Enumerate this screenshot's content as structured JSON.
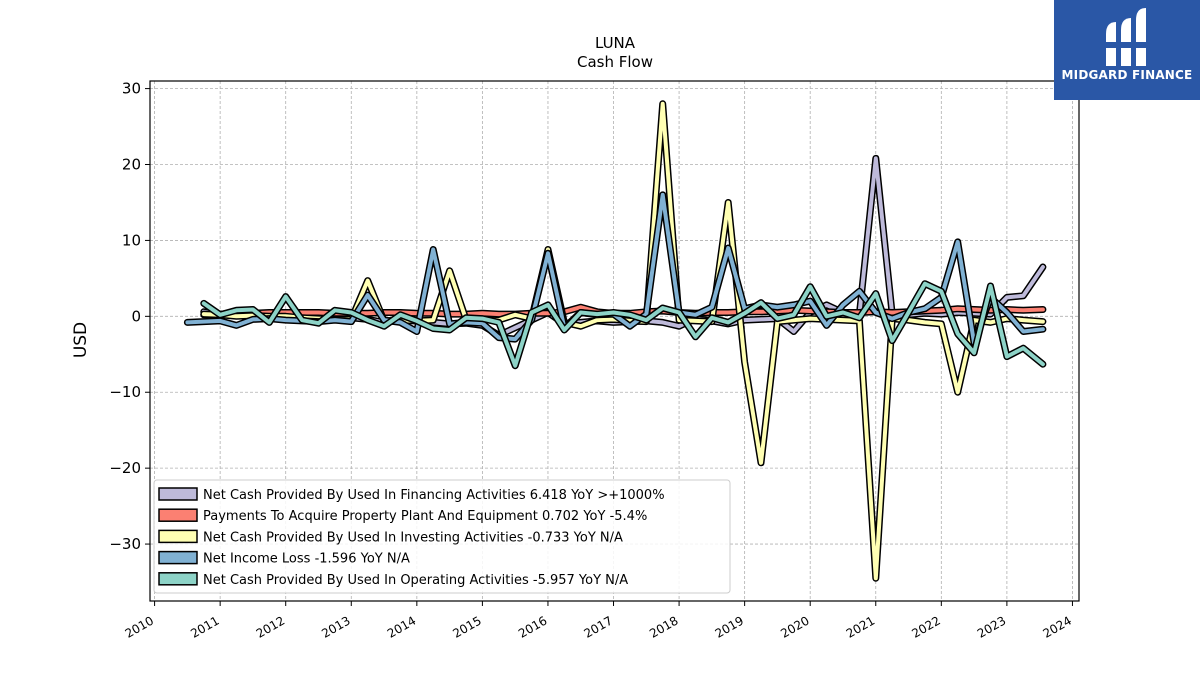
{
  "brand": {
    "name": "MIDGARD FINANCE",
    "color": "#2a57a6",
    "icon": "midgard-logo-icon"
  },
  "chart_data": {
    "type": "line",
    "title": "LUNA",
    "subtitle": "Cash Flow",
    "ylabel": "USD",
    "xlabel": "",
    "ylim": [
      -37.5,
      31
    ],
    "xlim": [
      2009.93,
      2024.1
    ],
    "yticks": [
      30,
      20,
      10,
      0,
      -10,
      -20,
      -30
    ],
    "ytick_labels": [
      "30",
      "20",
      "10",
      "0",
      "−10",
      "−20",
      "−30"
    ],
    "xticks": [
      2010,
      2011,
      2012,
      2013,
      2014,
      2015,
      2016,
      2017,
      2018,
      2019,
      2020,
      2021,
      2022,
      2023,
      2024
    ],
    "xtick_labels": [
      "2010",
      "2011",
      "2012",
      "2013",
      "2014",
      "2015",
      "2016",
      "2017",
      "2018",
      "2019",
      "2020",
      "2021",
      "2022",
      "2023",
      "2024"
    ],
    "grid": true,
    "legend_position": "lower-left",
    "series": [
      {
        "name": "Net Cash Provided By Used In Financing Activities",
        "legend_label": "Net Cash Provided By Used In Financing Activities  6.418 YoY >+1000%",
        "color": "#bebada",
        "points": [
          [
            2010.75,
            0.6
          ],
          [
            2011,
            0.3
          ],
          [
            2011.25,
            0.4
          ],
          [
            2011.5,
            0.2
          ],
          [
            2011.75,
            -0.2
          ],
          [
            2012,
            0.3
          ],
          [
            2012.25,
            0.1
          ],
          [
            2012.5,
            0
          ],
          [
            2012.75,
            -0.3
          ],
          [
            2013,
            -0.2
          ],
          [
            2013.25,
            -0.4
          ],
          [
            2013.5,
            -0.8
          ],
          [
            2013.75,
            -0.5
          ],
          [
            2014,
            -0.6
          ],
          [
            2014.25,
            -0.8
          ],
          [
            2014.5,
            -1.0
          ],
          [
            2014.75,
            -0.9
          ],
          [
            2015,
            -1.2
          ],
          [
            2015.25,
            -2.5
          ],
          [
            2015.5,
            -1.5
          ],
          [
            2015.75,
            -0.5
          ],
          [
            2016,
            0.5
          ],
          [
            2016.25,
            -1.0
          ],
          [
            2016.5,
            -0.8
          ],
          [
            2016.75,
            -0.6
          ],
          [
            2017,
            -0.8
          ],
          [
            2017.25,
            -0.7
          ],
          [
            2017.5,
            -0.6
          ],
          [
            2017.75,
            -0.8
          ],
          [
            2018,
            -1.3
          ],
          [
            2018.25,
            -0.3
          ],
          [
            2018.5,
            -0.6
          ],
          [
            2018.75,
            -1.0
          ],
          [
            2019,
            -0.5
          ],
          [
            2019.25,
            -0.4
          ],
          [
            2019.5,
            -0.3
          ],
          [
            2019.75,
            -2.0
          ],
          [
            2020,
            0.5
          ],
          [
            2020.25,
            1.5
          ],
          [
            2020.5,
            0.5
          ],
          [
            2020.75,
            0.3
          ],
          [
            2021,
            20.8
          ],
          [
            2021.25,
            0.3
          ],
          [
            2021.5,
            0.2
          ],
          [
            2021.75,
            0.4
          ],
          [
            2022,
            0.3
          ],
          [
            2022.25,
            0.5
          ],
          [
            2022.5,
            0.4
          ],
          [
            2022.75,
            0.3
          ],
          [
            2023,
            2.5
          ],
          [
            2023.25,
            2.7
          ],
          [
            2023.55,
            6.5
          ]
        ]
      },
      {
        "name": "Payments To Acquire Property Plant And Equipment",
        "legend_label": "Payments To Acquire Property Plant And Equipment  0.702 YoY -5.4%",
        "color": "#fb8072",
        "points": [
          [
            2010.75,
            0.2
          ],
          [
            2011,
            0.3
          ],
          [
            2011.25,
            0.4
          ],
          [
            2011.5,
            0.4
          ],
          [
            2011.75,
            0.5
          ],
          [
            2012,
            0.5
          ],
          [
            2012.25,
            0.5
          ],
          [
            2012.5,
            0.5
          ],
          [
            2012.75,
            0.4
          ],
          [
            2013,
            0.4
          ],
          [
            2013.25,
            0.4
          ],
          [
            2013.5,
            0.5
          ],
          [
            2013.75,
            0.5
          ],
          [
            2014,
            0.4
          ],
          [
            2014.25,
            0.4
          ],
          [
            2014.5,
            0.3
          ],
          [
            2014.75,
            0.3
          ],
          [
            2015,
            0.4
          ],
          [
            2015.25,
            0.3
          ],
          [
            2015.5,
            0.3
          ],
          [
            2015.75,
            0.4
          ],
          [
            2016,
            0.4
          ],
          [
            2016.25,
            0.6
          ],
          [
            2016.5,
            1.2
          ],
          [
            2016.75,
            0.6
          ],
          [
            2017,
            0.4
          ],
          [
            2017.25,
            0.4
          ],
          [
            2017.5,
            0.6
          ],
          [
            2017.75,
            0.7
          ],
          [
            2018,
            0.5
          ],
          [
            2018.25,
            0.4
          ],
          [
            2018.5,
            0.5
          ],
          [
            2018.75,
            0.5
          ],
          [
            2019,
            0.6
          ],
          [
            2019.25,
            0.6
          ],
          [
            2019.5,
            0.7
          ],
          [
            2019.75,
            0.8
          ],
          [
            2020,
            0.7
          ],
          [
            2020.25,
            0.6
          ],
          [
            2020.5,
            0.5
          ],
          [
            2020.75,
            0.5
          ],
          [
            2021,
            0.6
          ],
          [
            2021.25,
            0.5
          ],
          [
            2021.5,
            0.6
          ],
          [
            2021.75,
            0.7
          ],
          [
            2022,
            0.8
          ],
          [
            2022.25,
            1.0
          ],
          [
            2022.5,
            0.9
          ],
          [
            2022.75,
            0.8
          ],
          [
            2023,
            0.9
          ],
          [
            2023.25,
            0.8
          ],
          [
            2023.55,
            0.9
          ]
        ]
      },
      {
        "name": "Net Cash Provided By Used In Investing Activities",
        "legend_label": "Net Cash Provided By Used In Investing Activities  -0.733 YoY N/A",
        "color": "#ffffb3",
        "points": [
          [
            2010.75,
            0.3
          ],
          [
            2011,
            0.2
          ],
          [
            2011.25,
            0
          ],
          [
            2011.5,
            0.1
          ],
          [
            2011.75,
            0
          ],
          [
            2012,
            0
          ],
          [
            2012.25,
            -0.2
          ],
          [
            2012.5,
            -0.3
          ],
          [
            2012.75,
            -0.4
          ],
          [
            2013,
            -0.4
          ],
          [
            2013.25,
            4.7
          ],
          [
            2013.5,
            -0.6
          ],
          [
            2013.75,
            -0.5
          ],
          [
            2014,
            -0.6
          ],
          [
            2014.25,
            -0.5
          ],
          [
            2014.5,
            6.0
          ],
          [
            2014.75,
            -0.4
          ],
          [
            2015,
            -0.4
          ],
          [
            2015.25,
            -0.5
          ],
          [
            2015.5,
            0.2
          ],
          [
            2015.75,
            -0.3
          ],
          [
            2016,
            8.8
          ],
          [
            2016.25,
            -0.8
          ],
          [
            2016.5,
            -1.3
          ],
          [
            2016.75,
            -0.5
          ],
          [
            2017,
            -0.4
          ],
          [
            2017.25,
            -0.6
          ],
          [
            2017.5,
            -0.7
          ],
          [
            2017.75,
            28
          ],
          [
            2018,
            -0.5
          ],
          [
            2018.25,
            -0.6
          ],
          [
            2018.5,
            -0.7
          ],
          [
            2018.75,
            15
          ],
          [
            2019,
            -6
          ],
          [
            2019.25,
            -19.3
          ],
          [
            2019.5,
            -0.7
          ],
          [
            2019.75,
            -0.5
          ],
          [
            2020,
            -0.3
          ],
          [
            2020.25,
            -0.4
          ],
          [
            2020.5,
            -0.5
          ],
          [
            2020.75,
            -0.6
          ],
          [
            2021,
            -34.5
          ],
          [
            2021.25,
            -0.3
          ],
          [
            2021.5,
            -0.5
          ],
          [
            2021.75,
            -0.8
          ],
          [
            2022,
            -1.0
          ],
          [
            2022.25,
            -10
          ],
          [
            2022.5,
            -0.5
          ],
          [
            2022.75,
            -0.8
          ],
          [
            2023,
            -0.3
          ],
          [
            2023.25,
            -0.5
          ],
          [
            2023.55,
            -0.7
          ]
        ]
      },
      {
        "name": "Net Income Loss",
        "legend_label": "Net Income Loss  -1.596 YoY N/A",
        "color": "#80b1d3",
        "points": [
          [
            2010.5,
            -0.8
          ],
          [
            2010.75,
            -0.7
          ],
          [
            2011,
            -0.6
          ],
          [
            2011.25,
            -1.2
          ],
          [
            2011.5,
            -0.4
          ],
          [
            2011.75,
            -0.3
          ],
          [
            2012,
            -0.5
          ],
          [
            2012.25,
            -0.6
          ],
          [
            2012.5,
            -0.7
          ],
          [
            2012.75,
            -0.5
          ],
          [
            2013,
            -0.7
          ],
          [
            2013.25,
            2.8
          ],
          [
            2013.5,
            -0.5
          ],
          [
            2013.75,
            -0.8
          ],
          [
            2014,
            -2.0
          ],
          [
            2014.25,
            8.8
          ],
          [
            2014.5,
            -1.0
          ],
          [
            2014.75,
            -0.8
          ],
          [
            2015,
            -0.9
          ],
          [
            2015.25,
            -2.8
          ],
          [
            2015.5,
            -3.0
          ],
          [
            2015.75,
            -0.5
          ],
          [
            2016,
            8.3
          ],
          [
            2016.25,
            -1.5
          ],
          [
            2016.5,
            0.5
          ],
          [
            2016.75,
            0.2
          ],
          [
            2017,
            0.3
          ],
          [
            2017.25,
            -1.3
          ],
          [
            2017.5,
            0.3
          ],
          [
            2017.75,
            16
          ],
          [
            2018,
            0.5
          ],
          [
            2018.25,
            0.2
          ],
          [
            2018.5,
            1.2
          ],
          [
            2018.75,
            9.0
          ],
          [
            2019,
            1.0
          ],
          [
            2019.25,
            1.5
          ],
          [
            2019.5,
            1.2
          ],
          [
            2019.75,
            1.5
          ],
          [
            2020,
            2.0
          ],
          [
            2020.25,
            -1.2
          ],
          [
            2020.5,
            1.5
          ],
          [
            2020.75,
            3.3
          ],
          [
            2021,
            0.5
          ],
          [
            2021.25,
            -0.3
          ],
          [
            2021.5,
            0.5
          ],
          [
            2021.75,
            1.0
          ],
          [
            2022,
            2.5
          ],
          [
            2022.25,
            9.8
          ],
          [
            2022.5,
            -3.5
          ],
          [
            2022.75,
            2.5
          ],
          [
            2023,
            0.5
          ],
          [
            2023.25,
            -2.0
          ],
          [
            2023.55,
            -1.7
          ]
        ]
      },
      {
        "name": "Net Cash Provided By Used In Operating Activities",
        "legend_label": "Net Cash Provided By Used In Operating Activities  -5.957 YoY N/A",
        "color": "#8dd3c7",
        "points": [
          [
            2010.75,
            1.7
          ],
          [
            2011,
            0.2
          ],
          [
            2011.25,
            0.8
          ],
          [
            2011.5,
            0.9
          ],
          [
            2011.75,
            -0.8
          ],
          [
            2012,
            2.6
          ],
          [
            2012.25,
            -0.5
          ],
          [
            2012.5,
            -0.9
          ],
          [
            2012.75,
            0.8
          ],
          [
            2013,
            0.5
          ],
          [
            2013.25,
            -0.5
          ],
          [
            2013.5,
            -1.3
          ],
          [
            2013.75,
            0.2
          ],
          [
            2014,
            -0.6
          ],
          [
            2014.25,
            -1.6
          ],
          [
            2014.5,
            -1.8
          ],
          [
            2014.75,
            -0.2
          ],
          [
            2015,
            -0.3
          ],
          [
            2015.25,
            -0.8
          ],
          [
            2015.5,
            -6.5
          ],
          [
            2015.75,
            0.5
          ],
          [
            2016,
            1.5
          ],
          [
            2016.25,
            -1.8
          ],
          [
            2016.5,
            0.5
          ],
          [
            2016.75,
            0.3
          ],
          [
            2017,
            0.5
          ],
          [
            2017.25,
            0.2
          ],
          [
            2017.5,
            -0.5
          ],
          [
            2017.75,
            1.1
          ],
          [
            2018,
            0.5
          ],
          [
            2018.25,
            -2.7
          ],
          [
            2018.5,
            -0.2
          ],
          [
            2018.75,
            -0.8
          ],
          [
            2019,
            0.4
          ],
          [
            2019.25,
            1.8
          ],
          [
            2019.5,
            -0.3
          ],
          [
            2019.75,
            0.2
          ],
          [
            2020,
            3.9
          ],
          [
            2020.25,
            0
          ],
          [
            2020.5,
            0.5
          ],
          [
            2020.75,
            -0.2
          ],
          [
            2021,
            3.0
          ],
          [
            2021.25,
            -3.2
          ],
          [
            2021.5,
            0.5
          ],
          [
            2021.75,
            4.3
          ],
          [
            2022,
            3.3
          ],
          [
            2022.25,
            -2.3
          ],
          [
            2022.5,
            -4.8
          ],
          [
            2022.75,
            4.0
          ],
          [
            2023,
            -5.3
          ],
          [
            2023.25,
            -4.2
          ],
          [
            2023.55,
            -6.3
          ]
        ]
      }
    ]
  }
}
